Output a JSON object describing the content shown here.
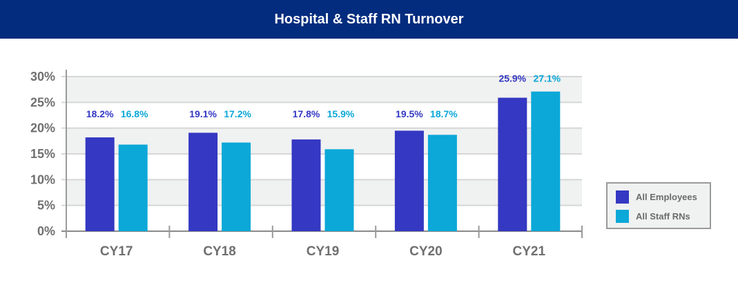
{
  "chart_data": {
    "type": "bar",
    "title": "Hospital & Staff RN Turnover",
    "categories": [
      "CY17",
      "CY18",
      "CY19",
      "CY20",
      "CY21"
    ],
    "series": [
      {
        "name": "All Employees",
        "color": "#3438c2",
        "values": [
          18.2,
          19.1,
          17.8,
          19.5,
          25.9
        ],
        "labels": [
          "18.2%",
          "19.1%",
          "17.8%",
          "19.5%",
          "25.9%"
        ]
      },
      {
        "name": "All Staff RNs",
        "color": "#0ba8d8",
        "values": [
          16.8,
          17.2,
          15.9,
          18.7,
          27.1
        ],
        "labels": [
          "16.8%",
          "17.2%",
          "15.9%",
          "18.7%",
          "27.1%"
        ]
      }
    ],
    "ylim": [
      0,
      30
    ],
    "yticks": [
      0,
      5,
      10,
      15,
      20,
      25,
      30
    ],
    "ytick_labels": [
      "0%",
      "5%",
      "10%",
      "15%",
      "20%",
      "25%",
      "30%"
    ],
    "xlabel": "",
    "ylabel": "",
    "grid": true,
    "legend_position": "bottom-right"
  }
}
